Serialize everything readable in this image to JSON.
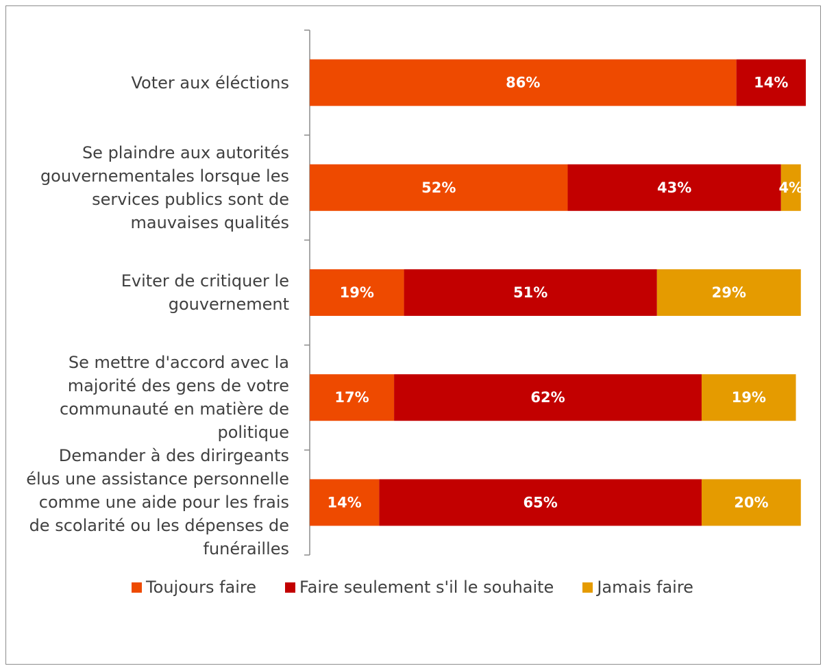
{
  "chart_data": {
    "type": "bar",
    "orientation": "horizontal",
    "stacked": true,
    "categories": [
      "Voter aux éléctions",
      "Se plaindre aux autorités gouvernementales lorsque les services publics sont de mauvaises qualités",
      "Eviter de critiquer le gouvernement",
      "Se mettre d'accord avec la majorité des gens de votre communauté en matière de politique",
      "Demander à des dirirgeants élus une assistance personnelle comme une aide pour les frais de scolarité ou les dépenses de funérailles"
    ],
    "series": [
      {
        "name": "Toujours faire",
        "color": "#ee4a00",
        "values": [
          86,
          52,
          19,
          17,
          14
        ]
      },
      {
        "name": "Faire seulement s'il le souhaite",
        "color": "#c20000",
        "values": [
          14,
          43,
          51,
          62,
          65
        ]
      },
      {
        "name": "Jamais faire",
        "color": "#e59b00",
        "values": [
          0,
          4,
          29,
          19,
          20
        ]
      }
    ],
    "xlim": [
      0,
      100
    ],
    "value_format": "percent",
    "legend_position": "bottom",
    "grid": false,
    "title": "",
    "xlabel": "",
    "ylabel": ""
  }
}
